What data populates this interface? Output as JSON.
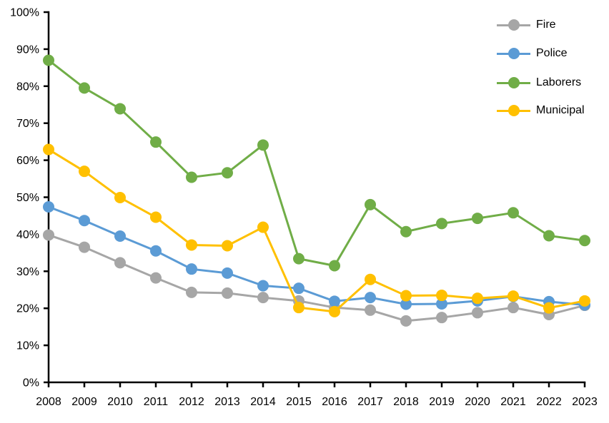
{
  "chart_data": {
    "type": "line",
    "title": "",
    "xlabel": "",
    "ylabel": "",
    "categories": [
      "2008",
      "2009",
      "2010",
      "2011",
      "2012",
      "2013",
      "2014",
      "2015",
      "2016",
      "2017",
      "2018",
      "2019",
      "2020",
      "2021",
      "2022",
      "2023"
    ],
    "y_axis": {
      "min": 0,
      "max": 100,
      "step": 10,
      "tick_labels": [
        "0%",
        "10%",
        "20%",
        "30%",
        "40%",
        "50%",
        "60%",
        "70%",
        "80%",
        "90%",
        "100%"
      ]
    },
    "grid": false,
    "legend_position": "top-right",
    "marker": "circle",
    "series": [
      {
        "name": "Fire",
        "color": "#A6A6A6",
        "values": [
          39.8,
          36.5,
          32.3,
          28.2,
          24.3,
          24.1,
          22.9,
          22.0,
          20.2,
          19.5,
          16.6,
          17.5,
          18.8,
          20.2,
          18.3,
          20.8
        ]
      },
      {
        "name": "Police",
        "color": "#5B9BD5",
        "values": [
          47.4,
          43.7,
          39.5,
          35.5,
          30.6,
          29.5,
          26.1,
          25.4,
          21.9,
          22.9,
          21.1,
          21.2,
          22.0,
          23.2,
          21.8,
          20.9
        ]
      },
      {
        "name": "Laborers",
        "color": "#70AD47",
        "values": [
          87.0,
          79.5,
          73.9,
          64.9,
          55.4,
          56.6,
          64.1,
          33.4,
          31.5,
          48.0,
          40.7,
          42.9,
          44.3,
          45.8,
          39.6,
          38.3
        ]
      },
      {
        "name": "Municipal",
        "color": "#FFC000",
        "values": [
          62.9,
          57.0,
          49.9,
          44.6,
          37.1,
          36.9,
          41.9,
          20.2,
          19.1,
          27.8,
          23.4,
          23.5,
          22.7,
          23.3,
          20.1,
          22.0
        ]
      }
    ]
  }
}
